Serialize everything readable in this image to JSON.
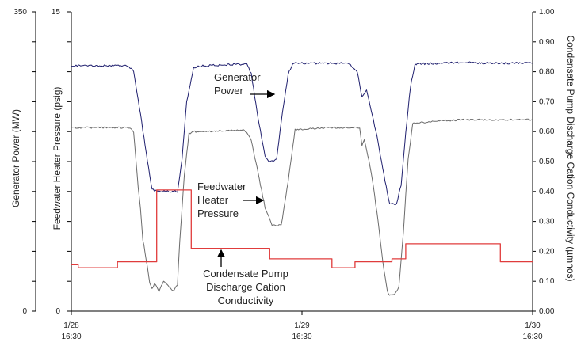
{
  "chart_data": {
    "type": "line",
    "x_ticks": [
      {
        "t": 0,
        "line1": "1/28",
        "line2": "16:30"
      },
      {
        "t": 1,
        "line1": "1/29",
        "line2": "16:30"
      },
      {
        "t": 2,
        "line1": "1/30",
        "line2": "16:30"
      }
    ],
    "axes": {
      "generator_power": {
        "label": "Generator Power (MW)",
        "range": [
          0,
          350
        ],
        "tick_labels": [
          {
            "v": 0,
            "text": "0"
          },
          {
            "v": 350,
            "text": "350"
          }
        ],
        "minor_ticks": 10
      },
      "feedwater_pressure": {
        "label": "Feedwater Heater Pressure (psig)",
        "range": [
          0,
          15
        ],
        "tick_labels": [
          {
            "v": 0,
            "text": "0"
          },
          {
            "v": 15,
            "text": "15"
          }
        ],
        "minor_ticks": 10
      },
      "conductivity": {
        "label": "Condensate Pump Discharge Cation Conductivity (µmhos)",
        "range": [
          0,
          1.0
        ],
        "tick_labels": [
          {
            "v": 0.0,
            "text": "0.00"
          },
          {
            "v": 0.1,
            "text": "0.10"
          },
          {
            "v": 0.2,
            "text": "0.20"
          },
          {
            "v": 0.3,
            "text": "0.30"
          },
          {
            "v": 0.4,
            "text": "0.40"
          },
          {
            "v": 0.5,
            "text": "0.50"
          },
          {
            "v": 0.6,
            "text": "0.60"
          },
          {
            "v": 0.7,
            "text": "0.70"
          },
          {
            "v": 0.8,
            "text": "0.80"
          },
          {
            "v": 0.9,
            "text": "0.90"
          },
          {
            "v": 1.0,
            "text": "1.00"
          }
        ]
      }
    },
    "series": [
      {
        "key": "generator_power",
        "axis": "generator_power",
        "color": "#1f1f6e",
        "annotation": [
          "Generator",
          "Power"
        ],
        "points": [
          [
            0.0,
            287
          ],
          [
            0.24,
            287
          ],
          [
            0.27,
            281
          ],
          [
            0.3,
            230
          ],
          [
            0.33,
            175
          ],
          [
            0.35,
            143
          ],
          [
            0.37,
            140
          ],
          [
            0.46,
            140
          ],
          [
            0.48,
            178
          ],
          [
            0.5,
            245
          ],
          [
            0.53,
            285
          ],
          [
            0.57,
            287
          ],
          [
            0.76,
            289
          ],
          [
            0.78,
            278
          ],
          [
            0.81,
            225
          ],
          [
            0.84,
            182
          ],
          [
            0.86,
            174
          ],
          [
            0.89,
            178
          ],
          [
            0.91,
            222
          ],
          [
            0.94,
            277
          ],
          [
            0.96,
            290
          ],
          [
            1.02,
            290
          ],
          [
            1.2,
            290
          ],
          [
            1.24,
            280
          ],
          [
            1.26,
            250
          ],
          [
            1.28,
            259
          ],
          [
            1.3,
            235
          ],
          [
            1.33,
            198
          ],
          [
            1.36,
            152
          ],
          [
            1.38,
            126
          ],
          [
            1.41,
            125
          ],
          [
            1.43,
            148
          ],
          [
            1.45,
            208
          ],
          [
            1.47,
            262
          ],
          [
            1.49,
            289
          ],
          [
            1.6,
            290
          ],
          [
            1.7,
            291
          ],
          [
            1.8,
            290
          ],
          [
            2.0,
            290
          ]
        ]
      },
      {
        "key": "feedwater_pressure",
        "axis": "feedwater_pressure",
        "color": "#6b6b6b",
        "annotation": [
          "Feedwater",
          "Heater",
          "Pressure"
        ],
        "points": [
          [
            0.0,
            9.2
          ],
          [
            0.25,
            9.2
          ],
          [
            0.27,
            9.0
          ],
          [
            0.28,
            7.6
          ],
          [
            0.29,
            6.2
          ],
          [
            0.3,
            5.1
          ],
          [
            0.31,
            3.6
          ],
          [
            0.33,
            2.2
          ],
          [
            0.34,
            1.4
          ],
          [
            0.35,
            1.1
          ],
          [
            0.36,
            1.4
          ],
          [
            0.38,
            1.0
          ],
          [
            0.4,
            1.5
          ],
          [
            0.42,
            1.3
          ],
          [
            0.44,
            1.0
          ],
          [
            0.46,
            1.3
          ],
          [
            0.47,
            3.5
          ],
          [
            0.49,
            6.8
          ],
          [
            0.51,
            8.9
          ],
          [
            0.53,
            9.0
          ],
          [
            0.6,
            9.0
          ],
          [
            0.75,
            9.1
          ],
          [
            0.78,
            8.6
          ],
          [
            0.81,
            6.9
          ],
          [
            0.84,
            5.2
          ],
          [
            0.87,
            4.3
          ],
          [
            0.91,
            4.3
          ],
          [
            0.94,
            6.5
          ],
          [
            0.97,
            9.1
          ],
          [
            1.1,
            9.2
          ],
          [
            1.25,
            9.2
          ],
          [
            1.26,
            8.3
          ],
          [
            1.27,
            8.6
          ],
          [
            1.29,
            7.6
          ],
          [
            1.31,
            6.2
          ],
          [
            1.33,
            4.5
          ],
          [
            1.35,
            2.5
          ],
          [
            1.37,
            1.0
          ],
          [
            1.38,
            0.8
          ],
          [
            1.4,
            0.8
          ],
          [
            1.42,
            1.2
          ],
          [
            1.44,
            4.0
          ],
          [
            1.46,
            7.6
          ],
          [
            1.48,
            9.4
          ],
          [
            1.55,
            9.5
          ],
          [
            1.7,
            9.6
          ],
          [
            1.85,
            9.6
          ],
          [
            2.0,
            9.6
          ]
        ]
      },
      {
        "key": "conductivity",
        "axis": "conductivity",
        "color": "#e03c3c",
        "annotation": [
          "Condensate Pump",
          "Discharge Cation",
          "Conductivity"
        ],
        "points": [
          [
            0.0,
            0.155
          ],
          [
            0.03,
            0.155
          ],
          [
            0.03,
            0.145
          ],
          [
            0.2,
            0.145
          ],
          [
            0.2,
            0.165
          ],
          [
            0.37,
            0.165
          ],
          [
            0.37,
            0.405
          ],
          [
            0.52,
            0.405
          ],
          [
            0.52,
            0.21
          ],
          [
            0.86,
            0.21
          ],
          [
            0.86,
            0.175
          ],
          [
            1.13,
            0.175
          ],
          [
            1.13,
            0.145
          ],
          [
            1.23,
            0.145
          ],
          [
            1.23,
            0.165
          ],
          [
            1.39,
            0.165
          ],
          [
            1.39,
            0.175
          ],
          [
            1.45,
            0.175
          ],
          [
            1.45,
            0.225
          ],
          [
            1.86,
            0.225
          ],
          [
            1.86,
            0.165
          ],
          [
            2.0,
            0.165
          ]
        ]
      }
    ]
  }
}
